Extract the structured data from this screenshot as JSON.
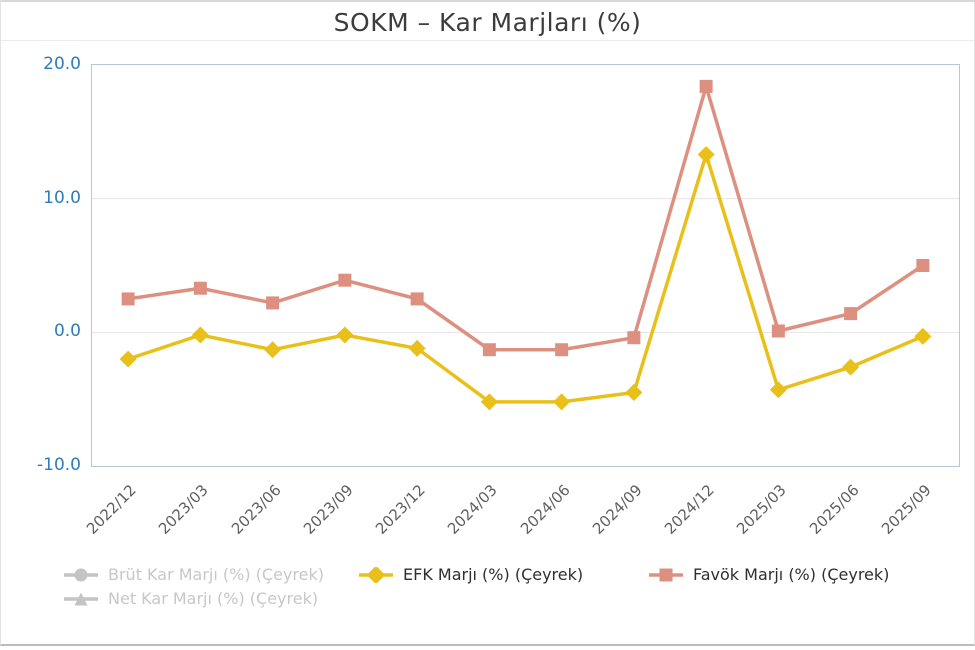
{
  "chart_data": {
    "type": "line",
    "title": "SOKM – Kar Marjları (%)",
    "categories": [
      "2022/12",
      "2023/03",
      "2023/06",
      "2023/09",
      "2023/12",
      "2024/03",
      "2024/06",
      "2024/09",
      "2024/12",
      "2025/03",
      "2025/06",
      "2025/09"
    ],
    "series": [
      {
        "name": "Brüt Kar Marjı (%) (Çeyrek)",
        "marker": "circle",
        "color": "#c4c4c4",
        "visible": false,
        "values": []
      },
      {
        "name": "Net Kar Marjı (%) (Çeyrek)",
        "marker": "triangle",
        "color": "#c4c4c4",
        "visible": false,
        "values": []
      },
      {
        "name": "EFK Marjı (%) (Çeyrek)",
        "marker": "diamond",
        "color": "#e9c01a",
        "visible": true,
        "values": [
          -2.0,
          -0.2,
          -1.3,
          -0.2,
          -1.2,
          -5.2,
          -5.2,
          -4.5,
          13.3,
          -4.3,
          -2.6,
          -0.3
        ]
      },
      {
        "name": "Favök Marjı (%) (Çeyrek)",
        "marker": "square",
        "color": "#dd9080",
        "visible": true,
        "values": [
          2.5,
          3.3,
          2.2,
          3.9,
          2.5,
          -1.3,
          -1.3,
          -0.4,
          18.4,
          0.1,
          1.4,
          5.0
        ]
      }
    ],
    "xlabel": "",
    "ylabel": "",
    "ylim": [
      -10,
      20
    ],
    "yticks": [
      {
        "label": "20.0",
        "value": 20
      },
      {
        "label": "10.0",
        "value": 10
      },
      {
        "label": "0.0",
        "value": 0
      },
      {
        "label": "-10.0",
        "value": -10
      }
    ],
    "gridlines": [
      10,
      0
    ],
    "grid": "horizontal-only",
    "legend_position": "bottom",
    "colors": {
      "axis_label_blue": "#2e7cb9",
      "x_label_gray": "#5f5f5f",
      "plot_border": "#b5c8da",
      "gridline": "#e4e4e4",
      "legend_text_active": "#2f2f2f",
      "legend_text_disabled": "#c7c7c7",
      "title_text": "#3c3c3c"
    }
  }
}
